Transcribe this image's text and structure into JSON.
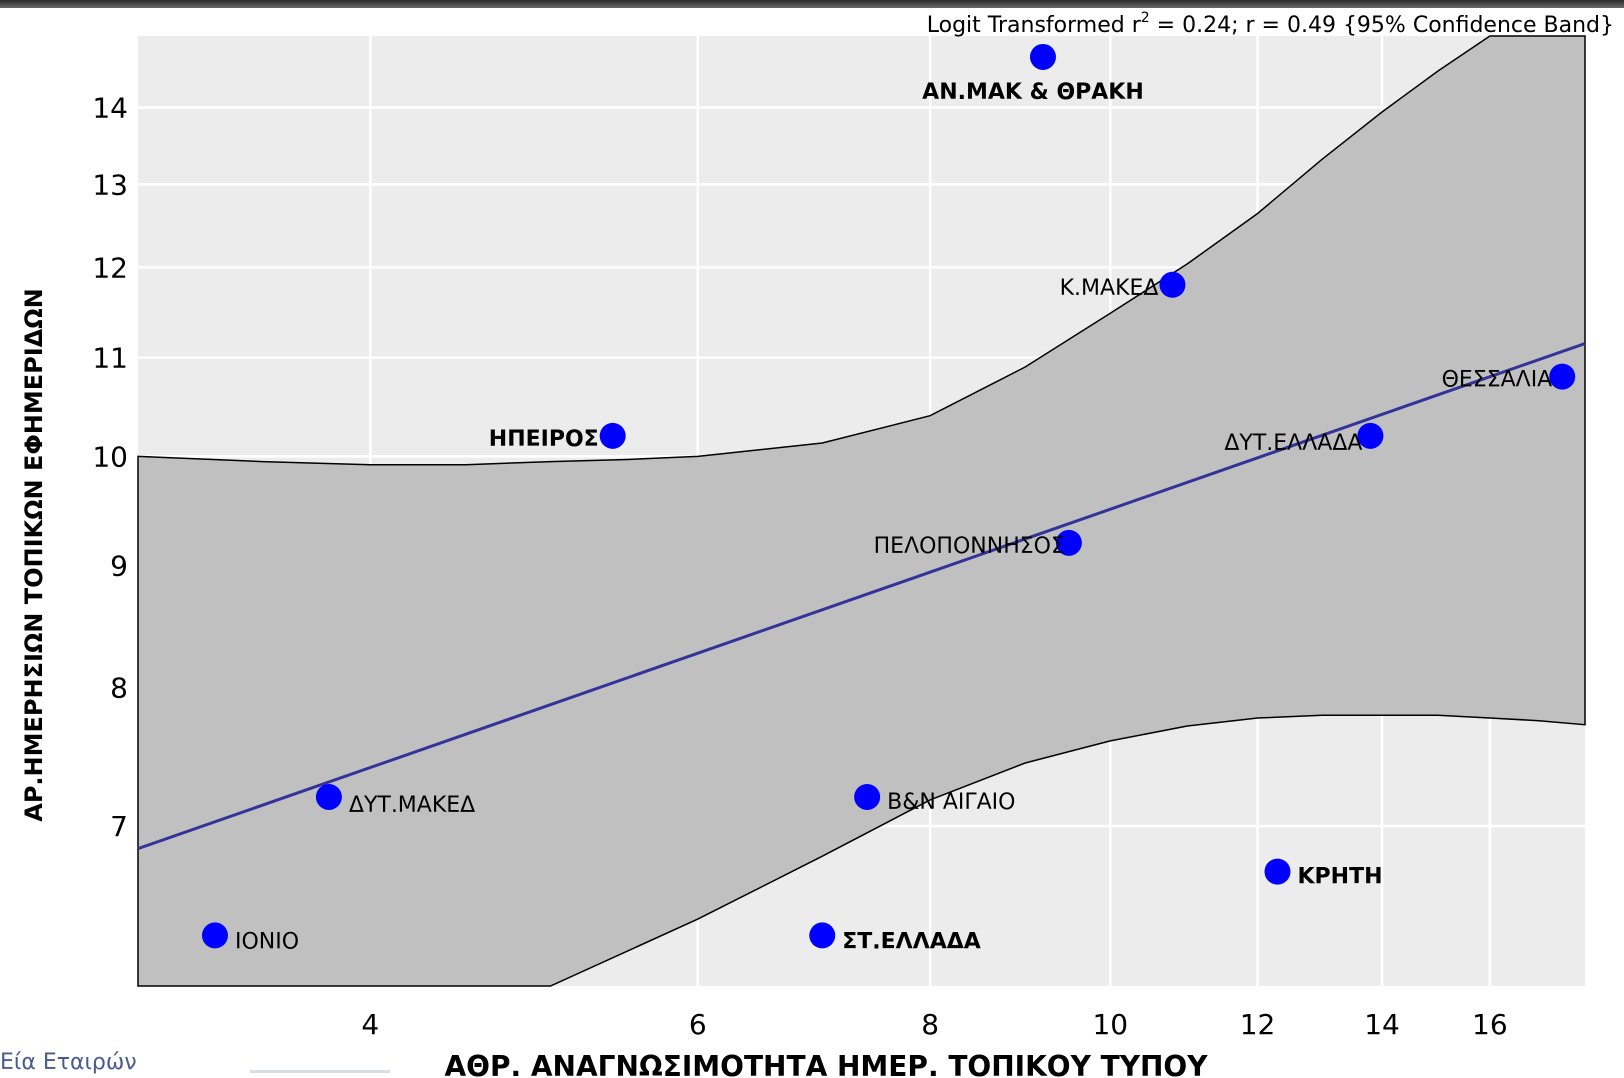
{
  "chart_data": {
    "type": "scatter",
    "annotation": {
      "prefix": "Logit Transformed r",
      "sup": "2",
      "suffix": " = 0.24; r = 0.49 {95% Confidence Band}"
    },
    "xlabel": "ΑΘΡ. ΑΝΑΓΝΩΣΙΜΟΤΗΤΑ ΗΜΕΡ. ΤΟΠΙΚΟΥ ΤΥΠΟΥ",
    "ylabel": "ΑΡ.ΗΜΕΡΗΣΙΩΝ ΤΟΠΙΚΩΝ ΕΦΗΜΕΡΙΔΩΝ",
    "x_ticks": [
      4,
      6,
      8,
      10,
      12,
      14,
      16
    ],
    "y_ticks": [
      7,
      8,
      9,
      10,
      11,
      12,
      13,
      14
    ],
    "grid": true,
    "points": [
      {
        "label": "ΑΝ.ΜΑΚ & ΘΡΑΚΗ",
        "x": 9.2,
        "y": 14.7,
        "bold": true
      },
      {
        "label": "Κ.ΜΑΚΕΔ",
        "x": 10.8,
        "y": 11.8,
        "bold": false
      },
      {
        "label": "ΘΕΣΣΑΛΙΑ",
        "x": 17.5,
        "y": 10.8,
        "bold": false
      },
      {
        "label": "ΗΠΕΙΡΟΣ",
        "x": 5.4,
        "y": 10.2,
        "bold": true
      },
      {
        "label": "ΔΥΤ.ΕΛΛΑΔΑ",
        "x": 13.8,
        "y": 10.2,
        "bold": false
      },
      {
        "label": "ΠΕΛΟΠΟΝΝΗΣΟΣ",
        "x": 9.5,
        "y": 9.2,
        "bold": false
      },
      {
        "label": "ΔΥΤ.ΜΑΚΕΔ",
        "x": 3.8,
        "y": 7.2,
        "bold": false
      },
      {
        "label": "Β&Ν ΑΙΓΑΙΟ",
        "x": 7.4,
        "y": 7.2,
        "bold": false
      },
      {
        "label": "ΚΡΗΤΗ",
        "x": 12.3,
        "y": 6.7,
        "bold": true
      },
      {
        "label": "ΙΟΝΙΟ",
        "x": 3.3,
        "y": 6.3,
        "bold": false
      },
      {
        "label": "ΣΤ.ΕΛΛΑΔΑ",
        "x": 7.0,
        "y": 6.3,
        "bold": true
      }
    ],
    "fit_line": {
      "x": [
        3.0,
        18.0
      ],
      "y": [
        6.85,
        11.15
      ]
    },
    "confidence_band": {
      "upper": [
        [
          3.0,
          10.0
        ],
        [
          3.5,
          9.95
        ],
        [
          4.0,
          9.92
        ],
        [
          4.5,
          9.92
        ],
        [
          5.0,
          9.95
        ],
        [
          5.5,
          9.97
        ],
        [
          6.0,
          10.0
        ],
        [
          7.0,
          10.13
        ],
        [
          8.0,
          10.4
        ],
        [
          9.0,
          10.9
        ],
        [
          10.0,
          11.48
        ],
        [
          11.0,
          12.04
        ],
        [
          12.0,
          12.64
        ],
        [
          13.0,
          13.32
        ],
        [
          14.0,
          13.94
        ],
        [
          15.0,
          14.5
        ],
        [
          16.0,
          15.1
        ],
        [
          17.0,
          15.8
        ],
        [
          18.0,
          16.5
        ]
      ],
      "lower": [
        [
          3.0,
          6.0
        ],
        [
          4.0,
          6.0
        ],
        [
          5.0,
          6.0
        ],
        [
          6.0,
          6.4
        ],
        [
          7.0,
          6.8
        ],
        [
          8.0,
          7.18
        ],
        [
          9.0,
          7.44
        ],
        [
          10.0,
          7.6
        ],
        [
          11.0,
          7.71
        ],
        [
          12.0,
          7.77
        ],
        [
          13.0,
          7.79
        ],
        [
          14.0,
          7.79
        ],
        [
          15.0,
          7.79
        ],
        [
          16.0,
          7.77
        ],
        [
          17.0,
          7.75
        ],
        [
          18.0,
          7.72
        ]
      ]
    },
    "colors": {
      "plot_background": "#ececec",
      "band_fill": "#c0c0c0",
      "band_stroke": "#000000",
      "point": "#0000ff",
      "fit_line": "#333399",
      "grid": "#ffffff",
      "text": "#000000"
    }
  },
  "footer": {
    "logo_text": "Εία Εταιρών"
  }
}
